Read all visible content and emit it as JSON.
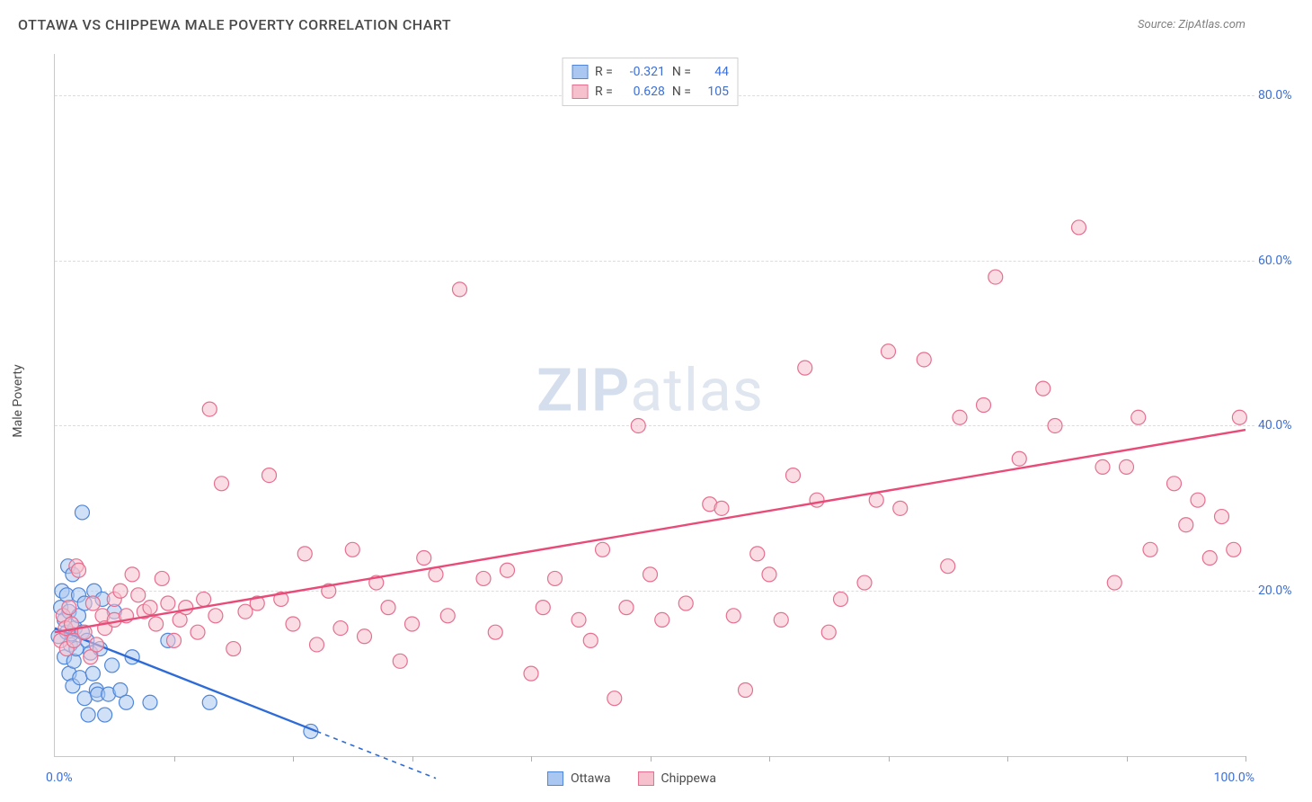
{
  "title": "OTTAWA VS CHIPPEWA MALE POVERTY CORRELATION CHART",
  "source": "Source: ZipAtlas.com",
  "watermark_zip": "ZIP",
  "watermark_atlas": "atlas",
  "y_axis_label": "Male Poverty",
  "chart": {
    "type": "scatter",
    "xlim": [
      0,
      100
    ],
    "ylim": [
      0,
      85
    ],
    "background_color": "#ffffff",
    "grid_color": "#dcdcdc",
    "axis_color": "#c8c8c8",
    "marker_radius": 8,
    "marker_opacity": 0.55,
    "y_ticks": [
      {
        "v": 20,
        "label": "20.0%"
      },
      {
        "v": 40,
        "label": "40.0%"
      },
      {
        "v": 60,
        "label": "60.0%"
      },
      {
        "v": 80,
        "label": "80.0%"
      }
    ],
    "x_ticks_minor": [
      10,
      20,
      30,
      40,
      50,
      60,
      70,
      80,
      90,
      100
    ],
    "x_min_label": "0.0%",
    "x_max_label": "100.0%",
    "series": [
      {
        "name": "Ottawa",
        "fill": "#a9c7f0",
        "stroke": "#4f86d9",
        "line_color": "#2e6bd6",
        "R_label": "R =",
        "R": "-0.321",
        "N_label": "N =",
        "N": "44",
        "trend": {
          "x1": 0,
          "y1": 15.5,
          "x2": 22,
          "y2": 3.0,
          "dash_to_x": 32
        },
        "points": [
          [
            0.3,
            14.5
          ],
          [
            0.5,
            18
          ],
          [
            0.6,
            20
          ],
          [
            0.8,
            12
          ],
          [
            0.8,
            16.5
          ],
          [
            1.0,
            19.5
          ],
          [
            1.0,
            15
          ],
          [
            1.1,
            23
          ],
          [
            1.2,
            10
          ],
          [
            1.2,
            17.5
          ],
          [
            1.3,
            13.5
          ],
          [
            1.4,
            14.8
          ],
          [
            1.5,
            22
          ],
          [
            1.5,
            8.5
          ],
          [
            1.6,
            11.5
          ],
          [
            1.7,
            15.5
          ],
          [
            1.8,
            13
          ],
          [
            2.0,
            17
          ],
          [
            2.0,
            19.5
          ],
          [
            2.1,
            9.5
          ],
          [
            2.3,
            29.5
          ],
          [
            2.3,
            15
          ],
          [
            2.5,
            18.5
          ],
          [
            2.5,
            7
          ],
          [
            2.7,
            14
          ],
          [
            2.8,
            5
          ],
          [
            3.0,
            12.5
          ],
          [
            3.2,
            10
          ],
          [
            3.3,
            20
          ],
          [
            3.5,
            8
          ],
          [
            3.6,
            7.5
          ],
          [
            3.8,
            13
          ],
          [
            4.0,
            19
          ],
          [
            4.2,
            5
          ],
          [
            4.5,
            7.5
          ],
          [
            4.8,
            11
          ],
          [
            5.0,
            17.5
          ],
          [
            5.5,
            8
          ],
          [
            6.0,
            6.5
          ],
          [
            6.5,
            12
          ],
          [
            8.0,
            6.5
          ],
          [
            9.5,
            14
          ],
          [
            13.0,
            6.5
          ],
          [
            21.5,
            3
          ]
        ]
      },
      {
        "name": "Chippewa",
        "fill": "#f6c1cd",
        "stroke": "#e66f8f",
        "line_color": "#e94b78",
        "R_label": "R =",
        "R": "0.628",
        "N_label": "N =",
        "N": "105",
        "trend": {
          "x1": 0,
          "y1": 15.0,
          "x2": 100,
          "y2": 39.5
        },
        "points": [
          [
            0.5,
            14
          ],
          [
            0.7,
            17
          ],
          [
            0.9,
            15.5
          ],
          [
            1.0,
            13
          ],
          [
            1.2,
            18
          ],
          [
            1.4,
            16
          ],
          [
            1.6,
            14
          ],
          [
            1.8,
            23
          ],
          [
            2.0,
            22.5
          ],
          [
            2.5,
            15
          ],
          [
            3.0,
            12
          ],
          [
            3.2,
            18.5
          ],
          [
            3.5,
            13.5
          ],
          [
            4.0,
            17
          ],
          [
            4.2,
            15.5
          ],
          [
            5.0,
            16.5
          ],
          [
            5.0,
            19
          ],
          [
            5.5,
            20
          ],
          [
            6.0,
            17
          ],
          [
            6.5,
            22
          ],
          [
            7.0,
            19.5
          ],
          [
            7.5,
            17.5
          ],
          [
            8.0,
            18
          ],
          [
            8.5,
            16
          ],
          [
            9.0,
            21.5
          ],
          [
            9.5,
            18.5
          ],
          [
            10.0,
            14
          ],
          [
            10.5,
            16.5
          ],
          [
            11.0,
            18
          ],
          [
            12.0,
            15
          ],
          [
            12.5,
            19
          ],
          [
            13.0,
            42
          ],
          [
            13.5,
            17
          ],
          [
            14.0,
            33
          ],
          [
            15.0,
            13
          ],
          [
            16.0,
            17.5
          ],
          [
            17.0,
            18.5
          ],
          [
            18.0,
            34
          ],
          [
            19.0,
            19
          ],
          [
            20.0,
            16
          ],
          [
            21.0,
            24.5
          ],
          [
            22.0,
            13.5
          ],
          [
            23.0,
            20
          ],
          [
            24.0,
            15.5
          ],
          [
            25.0,
            25
          ],
          [
            26.0,
            14.5
          ],
          [
            27.0,
            21
          ],
          [
            28.0,
            18
          ],
          [
            29.0,
            11.5
          ],
          [
            30.0,
            16
          ],
          [
            31.0,
            24
          ],
          [
            32.0,
            22
          ],
          [
            33.0,
            17
          ],
          [
            34.0,
            56.5
          ],
          [
            36.0,
            21.5
          ],
          [
            37.0,
            15
          ],
          [
            38.0,
            22.5
          ],
          [
            40.0,
            10
          ],
          [
            41.0,
            18
          ],
          [
            42.0,
            21.5
          ],
          [
            44.0,
            16.5
          ],
          [
            45.0,
            14
          ],
          [
            46.0,
            25
          ],
          [
            47.0,
            7
          ],
          [
            48.0,
            18
          ],
          [
            49.0,
            40
          ],
          [
            50.0,
            22
          ],
          [
            51.0,
            16.5
          ],
          [
            53.0,
            18.5
          ],
          [
            55.0,
            30.5
          ],
          [
            56.0,
            30
          ],
          [
            57.0,
            17
          ],
          [
            58.0,
            8
          ],
          [
            59.0,
            24.5
          ],
          [
            60.0,
            22
          ],
          [
            61.0,
            16.5
          ],
          [
            62.0,
            34
          ],
          [
            63.0,
            47
          ],
          [
            64.0,
            31
          ],
          [
            65.0,
            15
          ],
          [
            66.0,
            19
          ],
          [
            68.0,
            21
          ],
          [
            69.0,
            31
          ],
          [
            70.0,
            49
          ],
          [
            71.0,
            30
          ],
          [
            73.0,
            48
          ],
          [
            75.0,
            23
          ],
          [
            76.0,
            41
          ],
          [
            78.0,
            42.5
          ],
          [
            79.0,
            58
          ],
          [
            81.0,
            36
          ],
          [
            83.0,
            44.5
          ],
          [
            84.0,
            40
          ],
          [
            86.0,
            64
          ],
          [
            88.0,
            35
          ],
          [
            89.0,
            21
          ],
          [
            90.0,
            35
          ],
          [
            91.0,
            41
          ],
          [
            92.0,
            25
          ],
          [
            94.0,
            33
          ],
          [
            95.0,
            28
          ],
          [
            96.0,
            31
          ],
          [
            97.0,
            24
          ],
          [
            98.0,
            29
          ],
          [
            99.0,
            25
          ],
          [
            99.5,
            41
          ]
        ]
      }
    ]
  },
  "legend": {
    "items": [
      {
        "label": "Ottawa",
        "fill": "#a9c7f0",
        "stroke": "#4f86d9"
      },
      {
        "label": "Chippewa",
        "fill": "#f6c1cd",
        "stroke": "#e66f8f"
      }
    ]
  }
}
